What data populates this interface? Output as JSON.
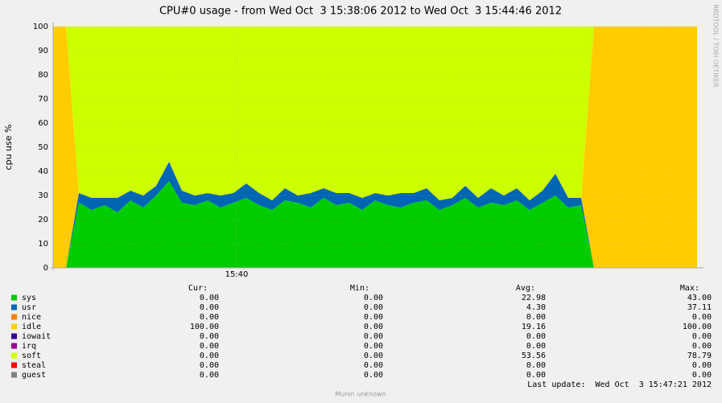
{
  "chart_data": {
    "type": "area",
    "title": "CPU#0 usage - from Wed Oct  3 15:38:06 2012 to Wed Oct  3 15:44:46 2012",
    "y_label": "cpu use %",
    "side_label": "RRDTOOL / TOBI OETIKER",
    "last_update": "Last update:  Wed Oct  3 15:47:21 2012",
    "footer": "Munin unknown",
    "stacked": true,
    "grid": true,
    "xlim": [
      56286,
      56686
    ],
    "xticks": [
      {
        "value": 56400,
        "label": "15:40"
      }
    ],
    "ylim": [
      0,
      100
    ],
    "yticks": [
      0,
      10,
      20,
      30,
      40,
      50,
      60,
      70,
      80,
      90,
      100
    ],
    "stats_columns": [
      "Cur:",
      "Min:",
      "Avg:",
      "Max:"
    ],
    "x": [
      56286,
      56294,
      56302,
      56310,
      56318,
      56326,
      56334,
      56342,
      56350,
      56358,
      56366,
      56374,
      56382,
      56390,
      56398,
      56406,
      56414,
      56422,
      56430,
      56438,
      56446,
      56454,
      56462,
      56470,
      56478,
      56486,
      56494,
      56502,
      56510,
      56518,
      56526,
      56534,
      56542,
      56550,
      56558,
      56566,
      56574,
      56582,
      56590,
      56598,
      56606,
      56614,
      56622,
      56630,
      56638,
      56646,
      56654,
      56662,
      56670,
      56678,
      56686
    ],
    "series": [
      {
        "name": "sys",
        "color": "#00cc00",
        "stats": [
          "0.00",
          "0.00",
          "22.98",
          "43.00"
        ],
        "values": [
          0,
          0,
          27,
          24,
          26,
          23,
          28,
          25,
          30,
          36,
          27,
          26,
          28,
          25,
          27,
          29,
          26,
          24,
          28,
          27,
          25,
          29,
          26,
          27,
          24,
          28,
          26,
          25,
          27,
          28,
          24,
          26,
          29,
          25,
          27,
          26,
          28,
          24,
          27,
          30,
          25,
          26,
          0,
          0,
          0,
          0,
          0,
          0,
          0,
          0,
          0
        ]
      },
      {
        "name": "usr",
        "color": "#0066b3",
        "stats": [
          "0.00",
          "0.00",
          "4.30",
          "37.11"
        ],
        "values": [
          0,
          0,
          4,
          5,
          3,
          6,
          4,
          5,
          4,
          8,
          5,
          4,
          3,
          5,
          4,
          6,
          5,
          4,
          5,
          3,
          6,
          4,
          5,
          4,
          5,
          3,
          4,
          6,
          4,
          5,
          4,
          3,
          5,
          4,
          6,
          4,
          5,
          4,
          5,
          9,
          4,
          3,
          0,
          0,
          0,
          0,
          0,
          0,
          0,
          0,
          0
        ]
      },
      {
        "name": "nice",
        "color": "#ff8000",
        "stats": [
          "0.00",
          "0.00",
          "0.00",
          "0.00"
        ],
        "values": [
          0,
          0,
          0,
          0,
          0,
          0,
          0,
          0,
          0,
          0,
          0,
          0,
          0,
          0,
          0,
          0,
          0,
          0,
          0,
          0,
          0,
          0,
          0,
          0,
          0,
          0,
          0,
          0,
          0,
          0,
          0,
          0,
          0,
          0,
          0,
          0,
          0,
          0,
          0,
          0,
          0,
          0,
          0,
          0,
          0,
          0,
          0,
          0,
          0,
          0,
          0
        ]
      },
      {
        "name": "idle",
        "color": "#ffcc00",
        "stats": [
          "100.00",
          "0.00",
          "19.16",
          "100.00"
        ],
        "values": [
          100,
          100,
          0,
          0,
          0,
          0,
          0,
          0,
          0,
          0,
          0,
          0,
          0,
          0,
          0,
          0,
          0,
          0,
          0,
          0,
          0,
          0,
          0,
          0,
          0,
          0,
          0,
          0,
          0,
          0,
          0,
          0,
          0,
          0,
          0,
          0,
          0,
          0,
          0,
          0,
          0,
          0,
          100,
          100,
          100,
          100,
          100,
          100,
          100,
          100,
          100
        ]
      },
      {
        "name": "iowait",
        "color": "#330099",
        "stats": [
          "0.00",
          "0.00",
          "0.00",
          "0.00"
        ],
        "values": [
          0,
          0,
          0,
          0,
          0,
          0,
          0,
          0,
          0,
          0,
          0,
          0,
          0,
          0,
          0,
          0,
          0,
          0,
          0,
          0,
          0,
          0,
          0,
          0,
          0,
          0,
          0,
          0,
          0,
          0,
          0,
          0,
          0,
          0,
          0,
          0,
          0,
          0,
          0,
          0,
          0,
          0,
          0,
          0,
          0,
          0,
          0,
          0,
          0,
          0,
          0
        ]
      },
      {
        "name": "irq",
        "color": "#990099",
        "stats": [
          "0.00",
          "0.00",
          "0.00",
          "0.00"
        ],
        "values": [
          0,
          0,
          0,
          0,
          0,
          0,
          0,
          0,
          0,
          0,
          0,
          0,
          0,
          0,
          0,
          0,
          0,
          0,
          0,
          0,
          0,
          0,
          0,
          0,
          0,
          0,
          0,
          0,
          0,
          0,
          0,
          0,
          0,
          0,
          0,
          0,
          0,
          0,
          0,
          0,
          0,
          0,
          0,
          0,
          0,
          0,
          0,
          0,
          0,
          0,
          0
        ]
      },
      {
        "name": "soft",
        "color": "#ccff00",
        "stats": [
          "0.00",
          "0.00",
          "53.56",
          "78.79"
        ],
        "values": [
          0,
          0,
          69,
          71,
          71,
          71,
          68,
          70,
          66,
          56,
          68,
          70,
          69,
          70,
          69,
          65,
          69,
          72,
          67,
          70,
          69,
          67,
          69,
          69,
          71,
          69,
          70,
          69,
          69,
          67,
          72,
          71,
          66,
          71,
          67,
          70,
          67,
          72,
          68,
          61,
          71,
          71,
          0,
          0,
          0,
          0,
          0,
          0,
          0,
          0,
          0
        ]
      },
      {
        "name": "steal",
        "color": "#ff0000",
        "stats": [
          "0.00",
          "0.00",
          "0.00",
          "0.00"
        ],
        "values": [
          0,
          0,
          0,
          0,
          0,
          0,
          0,
          0,
          0,
          0,
          0,
          0,
          0,
          0,
          0,
          0,
          0,
          0,
          0,
          0,
          0,
          0,
          0,
          0,
          0,
          0,
          0,
          0,
          0,
          0,
          0,
          0,
          0,
          0,
          0,
          0,
          0,
          0,
          0,
          0,
          0,
          0,
          0,
          0,
          0,
          0,
          0,
          0,
          0,
          0,
          0
        ]
      },
      {
        "name": "guest",
        "color": "#808080",
        "stats": [
          "0.00",
          "0.00",
          "0.00",
          "0.00"
        ],
        "values": [
          0,
          0,
          0,
          0,
          0,
          0,
          0,
          0,
          0,
          0,
          0,
          0,
          0,
          0,
          0,
          0,
          0,
          0,
          0,
          0,
          0,
          0,
          0,
          0,
          0,
          0,
          0,
          0,
          0,
          0,
          0,
          0,
          0,
          0,
          0,
          0,
          0,
          0,
          0,
          0,
          0,
          0,
          0,
          0,
          0,
          0,
          0,
          0,
          0,
          0,
          0
        ]
      }
    ]
  }
}
